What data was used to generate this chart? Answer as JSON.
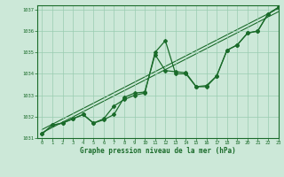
{
  "title": "Graphe pression niveau de la mer (hPa)",
  "background_color": "#cce8d8",
  "plot_bg_color": "#cce8d8",
  "grid_color": "#99ccb0",
  "line_color": "#1a6b2a",
  "xlim": [
    -0.5,
    23
  ],
  "ylim": [
    1031,
    1037.2
  ],
  "yticks": [
    1031,
    1032,
    1033,
    1034,
    1035,
    1036,
    1037
  ],
  "xticks": [
    0,
    1,
    2,
    3,
    4,
    5,
    6,
    7,
    8,
    9,
    10,
    11,
    12,
    13,
    14,
    15,
    16,
    17,
    18,
    19,
    20,
    21,
    22,
    23
  ],
  "series1": [
    1031.2,
    1031.6,
    1031.7,
    1031.9,
    1032.1,
    1031.7,
    1031.9,
    1032.5,
    1032.8,
    1033.0,
    1033.1,
    1035.0,
    1035.55,
    1034.0,
    1034.0,
    1033.4,
    1033.4,
    1033.9,
    1035.1,
    1035.35,
    1035.9,
    1036.0,
    1036.8,
    1037.1
  ],
  "series2": [
    1031.2,
    1031.6,
    1031.7,
    1031.9,
    1032.1,
    1031.7,
    1031.85,
    1032.1,
    1032.9,
    1033.1,
    1033.15,
    1034.9,
    1034.15,
    1034.1,
    1034.05,
    1033.4,
    1033.45,
    1033.9,
    1035.1,
    1035.35,
    1035.9,
    1036.0,
    1036.8,
    1037.1
  ],
  "line1_x": [
    0,
    23
  ],
  "line1_y": [
    1031.25,
    1036.9
  ],
  "line2_x": [
    0,
    23
  ],
  "line2_y": [
    1031.4,
    1037.05
  ]
}
